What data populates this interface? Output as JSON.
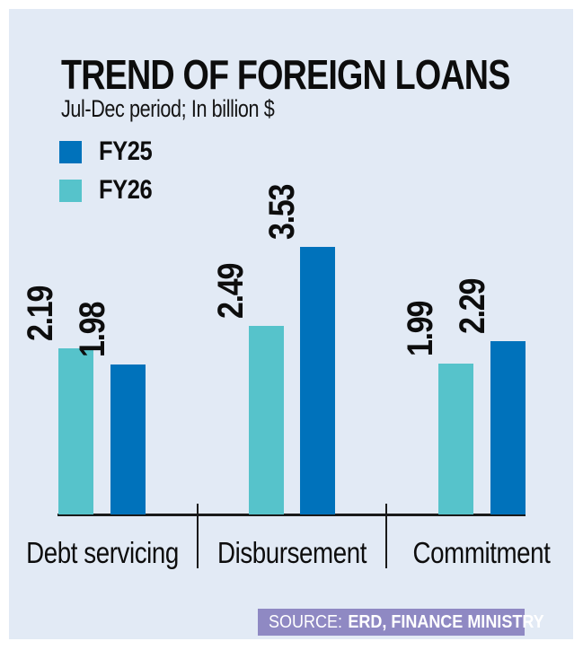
{
  "chart_data": {
    "type": "bar",
    "title": "TREND OF FOREIGN LOANS",
    "subtitle": "Jul-Dec period; In billion $",
    "categories": [
      "Debt servicing",
      "Disbursement",
      "Commitment"
    ],
    "series": [
      {
        "name": "FY25",
        "color": "#0072bb",
        "values": [
          1.98,
          3.53,
          2.29
        ]
      },
      {
        "name": "FY26",
        "color": "#56c3cb",
        "values": [
          2.19,
          2.49,
          1.99
        ]
      }
    ],
    "bar_order": [
      "FY26",
      "FY25"
    ],
    "value_label_format": "0.00",
    "value_label_rotation_deg": 90,
    "ylim": [
      0,
      4
    ],
    "grid": false,
    "legend_position": "top-left",
    "axis_line": "bottom-only"
  },
  "source": {
    "prefix": "SOURCE:",
    "text": "ERD, FINANCE MINISTRY"
  },
  "colors": {
    "page_bg": "#ffffff",
    "panel_bg": "#e2eaf5",
    "axis": "#1a1a1a",
    "text": "#0d0d0d",
    "source_bg": "#8f89c3",
    "source_text": "#ffffff"
  }
}
